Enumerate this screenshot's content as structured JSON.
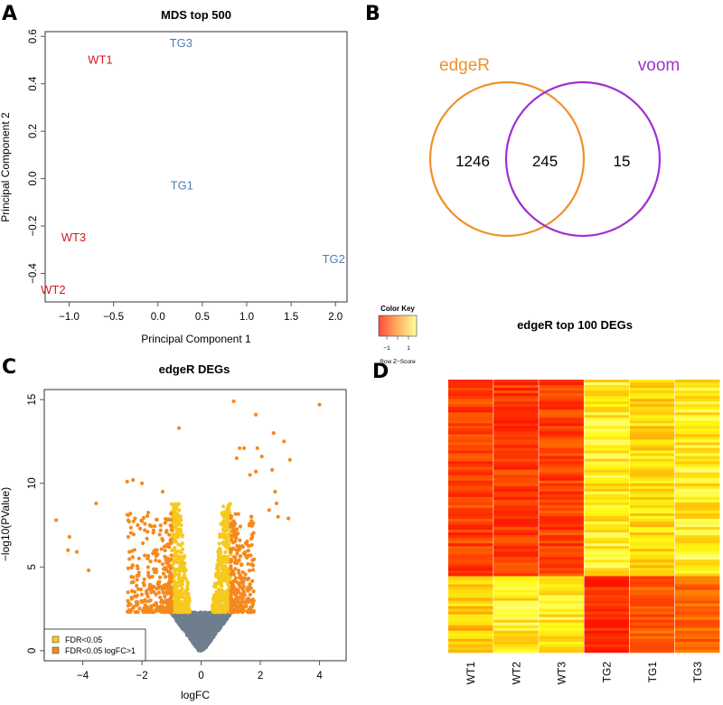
{
  "figure": {
    "panel_labels": [
      "A",
      "B",
      "C",
      "D"
    ]
  },
  "chart_data": [
    {
      "id": "A",
      "type": "scatter",
      "title": "MDS top 500",
      "xlabel": "Principal Component 1",
      "ylabel": "Principal Component 2",
      "xlim": [
        -1.27,
        2.13
      ],
      "ylim": [
        -0.52,
        0.62
      ],
      "xticks": [
        -1.0,
        -0.5,
        0.0,
        0.5,
        1.0,
        1.5,
        2.0
      ],
      "xtick_labels": [
        "−1.0",
        "−0.5",
        "0.0",
        "0.5",
        "1.0",
        "1.5",
        "2.0"
      ],
      "yticks": [
        -0.4,
        -0.2,
        0.0,
        0.2,
        0.4,
        0.6
      ],
      "ytick_labels": [
        "−0.4",
        "−0.2",
        "0.0",
        "0.2",
        "0.4",
        "0.6"
      ],
      "grid": false,
      "points": [
        {
          "label": "WT1",
          "x": -0.65,
          "y": 0.5,
          "group": "WT"
        },
        {
          "label": "WT2",
          "x": -1.18,
          "y": -0.47,
          "group": "WT"
        },
        {
          "label": "WT3",
          "x": -0.95,
          "y": -0.25,
          "group": "WT"
        },
        {
          "label": "TG1",
          "x": 0.27,
          "y": -0.03,
          "group": "TG"
        },
        {
          "label": "TG2",
          "x": 1.98,
          "y": -0.34,
          "group": "TG"
        },
        {
          "label": "TG3",
          "x": 0.26,
          "y": 0.57,
          "group": "TG"
        }
      ],
      "colors": {
        "WT": "#d7191c",
        "TG": "#4a7fb0"
      }
    },
    {
      "id": "B",
      "type": "venn",
      "sets": [
        {
          "name": "edgeR",
          "color": "#f0912a",
          "only": 1246
        },
        {
          "name": "voom",
          "color": "#a030d0",
          "only": 15
        }
      ],
      "intersection": 245
    },
    {
      "id": "C",
      "type": "scatter",
      "title": "edgeR DEGs",
      "xlabel": "logFC",
      "ylabel": "−log10(PValue)",
      "xlim": [
        -5.3,
        4.9
      ],
      "ylim": [
        -0.6,
        15.6
      ],
      "xticks": [
        -4,
        -2,
        0,
        2,
        4
      ],
      "xtick_labels": [
        "−4",
        "−2",
        "0",
        "2",
        "4"
      ],
      "yticks": [
        0,
        5,
        10,
        15
      ],
      "ytick_labels": [
        "0",
        "5",
        "10",
        "15"
      ],
      "grid": false,
      "legend": {
        "position": "bottom-left",
        "entries": [
          {
            "label": "FDR<0.05",
            "color": "#f7c81e"
          },
          {
            "label": "FDR<0.05 logFC>1",
            "color": "#f5891e"
          }
        ]
      },
      "series_colors": {
        "not_significant": "#6e7e8c",
        "fdr": "#f7c81e",
        "fdr_logfc": "#f5891e"
      },
      "fdr_threshold_neglog10p": 2.3,
      "highlight_points": [
        {
          "x": 4.0,
          "y": 14.7
        },
        {
          "x": 1.1,
          "y": 14.9
        },
        {
          "x": 1.85,
          "y": 14.1
        },
        {
          "x": -0.75,
          "y": 13.3
        },
        {
          "x": 2.45,
          "y": 13.0
        },
        {
          "x": 2.8,
          "y": 12.5
        },
        {
          "x": 1.3,
          "y": 12.1
        },
        {
          "x": 1.45,
          "y": 12.1
        },
        {
          "x": 1.9,
          "y": 12.1
        },
        {
          "x": 1.2,
          "y": 11.5
        },
        {
          "x": 2.05,
          "y": 11.6
        },
        {
          "x": 3.0,
          "y": 11.4
        },
        {
          "x": 1.85,
          "y": 10.7
        },
        {
          "x": 1.65,
          "y": 10.5
        },
        {
          "x": 2.4,
          "y": 10.8
        },
        {
          "x": -2.5,
          "y": 10.1
        },
        {
          "x": -2.3,
          "y": 10.2
        },
        {
          "x": -2.0,
          "y": 10.0
        },
        {
          "x": -1.3,
          "y": 9.5
        },
        {
          "x": -3.55,
          "y": 8.8
        },
        {
          "x": -4.9,
          "y": 7.8
        },
        {
          "x": -4.45,
          "y": 6.8
        },
        {
          "x": -4.5,
          "y": 6.0
        },
        {
          "x": -4.2,
          "y": 5.9
        },
        {
          "x": -3.8,
          "y": 4.8
        },
        {
          "x": 2.95,
          "y": 7.9
        },
        {
          "x": 2.6,
          "y": 8.0
        },
        {
          "x": 2.3,
          "y": 8.4
        },
        {
          "x": 2.5,
          "y": 9.5
        },
        {
          "x": 2.55,
          "y": 8.8
        }
      ]
    },
    {
      "id": "D",
      "type": "heatmap",
      "title": "edgeR top 100 DEGs",
      "columns": [
        "WT1",
        "WT2",
        "WT3",
        "TG2",
        "TG1",
        "TG3"
      ],
      "n_rows": 100,
      "color_key": {
        "title": "Color Key",
        "label": "Row Z−Score",
        "tick_labels": [
          "−1",
          "1"
        ],
        "low_color": "#ff2a00",
        "high_color": "#ffffa0"
      },
      "row_blocks": [
        {
          "rows": 72,
          "mean_z": [
            -1.0,
            -1.1,
            -1.0,
            0.9,
            0.7,
            0.9
          ]
        },
        {
          "rows": 28,
          "mean_z": [
            0.5,
            0.9,
            0.9,
            -1.3,
            -0.7,
            -0.6
          ]
        }
      ]
    }
  ]
}
